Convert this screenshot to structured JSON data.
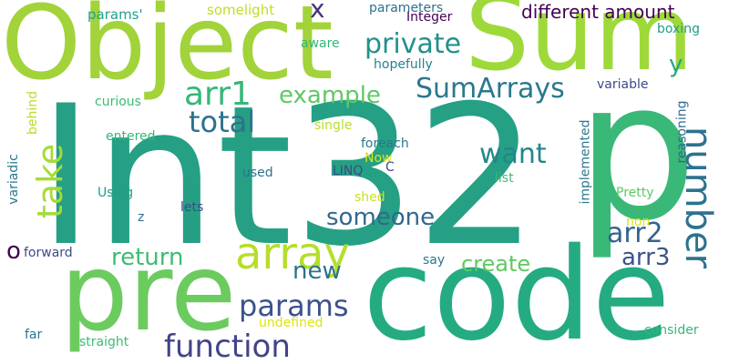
{
  "words": [
    {
      "text": "Int32",
      "color": "#25a084",
      "rotated": false
    },
    {
      "text": "Object",
      "color": "#a2d33a",
      "rotated": false
    },
    {
      "text": "Sum",
      "color": "#9ed93a",
      "rotated": false
    },
    {
      "text": "p",
      "color": "#3ab877",
      "rotated": false
    },
    {
      "text": "code",
      "color": "#25ab82",
      "rotated": false
    },
    {
      "text": "pre",
      "color": "#6ccb5f",
      "rotated": false
    },
    {
      "text": "array",
      "color": "#b5de2b",
      "rotated": false
    },
    {
      "text": "function",
      "color": "#414487",
      "rotated": false
    },
    {
      "text": "params",
      "color": "#3b528b",
      "rotated": false
    },
    {
      "text": "number",
      "color": "#2c728e",
      "rotated": true
    },
    {
      "text": "take",
      "color": "#a5db36",
      "rotated": true
    },
    {
      "text": "SumArrays",
      "color": "#2a788e",
      "rotated": false
    },
    {
      "text": "private",
      "color": "#21918c",
      "rotated": false
    },
    {
      "text": "different amount",
      "color": "#440154",
      "rotated": false
    },
    {
      "text": "arr1",
      "color": "#35b779",
      "rotated": false
    },
    {
      "text": "total",
      "color": "#2c728e",
      "rotated": false
    },
    {
      "text": "example",
      "color": "#5ec962",
      "rotated": false
    },
    {
      "text": "want",
      "color": "#24868e",
      "rotated": false
    },
    {
      "text": "someone",
      "color": "#31688e",
      "rotated": false
    },
    {
      "text": "arr2",
      "color": "#32648e",
      "rotated": false
    },
    {
      "text": "arr3",
      "color": "#3b528b",
      "rotated": false
    },
    {
      "text": "return",
      "color": "#3dbc74",
      "rotated": false
    },
    {
      "text": "create",
      "color": "#5ec962",
      "rotated": false
    },
    {
      "text": "new",
      "color": "#2c728e",
      "rotated": false
    },
    {
      "text": "x",
      "color": "#46337e",
      "rotated": false
    },
    {
      "text": "y",
      "color": "#22a884",
      "rotated": false
    },
    {
      "text": "o",
      "color": "#440154",
      "rotated": false
    },
    {
      "text": "params'",
      "color": "#1fa187",
      "rotated": false
    },
    {
      "text": "somelight",
      "color": "#bddf26",
      "rotated": false
    },
    {
      "text": "parameters",
      "color": "#2c728e",
      "rotated": false
    },
    {
      "text": "Integer",
      "color": "#440154",
      "rotated": false
    },
    {
      "text": "boxing",
      "color": "#1f9e89",
      "rotated": false
    },
    {
      "text": "aware",
      "color": "#35b779",
      "rotated": false
    },
    {
      "text": "hopefully",
      "color": "#26828e",
      "rotated": false
    },
    {
      "text": "curious",
      "color": "#3dbc74",
      "rotated": false
    },
    {
      "text": "variable",
      "color": "#3e4a89",
      "rotated": false
    },
    {
      "text": "reasoning",
      "color": "#31688e",
      "rotated": true
    },
    {
      "text": "behind",
      "color": "#b8de29",
      "rotated": true
    },
    {
      "text": "single",
      "color": "#b8de29",
      "rotated": false
    },
    {
      "text": "entered",
      "color": "#35b779",
      "rotated": false
    },
    {
      "text": "foreach",
      "color": "#2a788e",
      "rotated": false
    },
    {
      "text": "Now",
      "color": "#dde318",
      "rotated": false
    },
    {
      "text": "C",
      "color": "#3e4a89",
      "rotated": false
    },
    {
      "text": "LINQ",
      "color": "#3e4a89",
      "rotated": false
    },
    {
      "text": "used",
      "color": "#2c728e",
      "rotated": false
    },
    {
      "text": "list",
      "color": "#3dbc74",
      "rotated": false
    },
    {
      "text": "variadic",
      "color": "#2a788e",
      "rotated": true
    },
    {
      "text": "implemented",
      "color": "#2a788e",
      "rotated": true
    },
    {
      "text": "Pretty",
      "color": "#5ec962",
      "rotated": false
    },
    {
      "text": "Using",
      "color": "#1f9e89",
      "rotated": false
    },
    {
      "text": "shed",
      "color": "#cae11f",
      "rotated": false
    },
    {
      "text": "lets",
      "color": "#3e4a89",
      "rotated": false
    },
    {
      "text": "z",
      "color": "#2c728e",
      "rotated": false
    },
    {
      "text": "non",
      "color": "#dde318",
      "rotated": false
    },
    {
      "text": "forward",
      "color": "#3e4a89",
      "rotated": false
    },
    {
      "text": "say",
      "color": "#2a788e",
      "rotated": false
    },
    {
      "text": "undefined",
      "color": "#dde318",
      "rotated": false
    },
    {
      "text": "far",
      "color": "#2a788e",
      "rotated": false
    },
    {
      "text": "straight",
      "color": "#3dbc74",
      "rotated": false
    },
    {
      "text": "consider",
      "color": "#35b779",
      "rotated": false
    }
  ]
}
